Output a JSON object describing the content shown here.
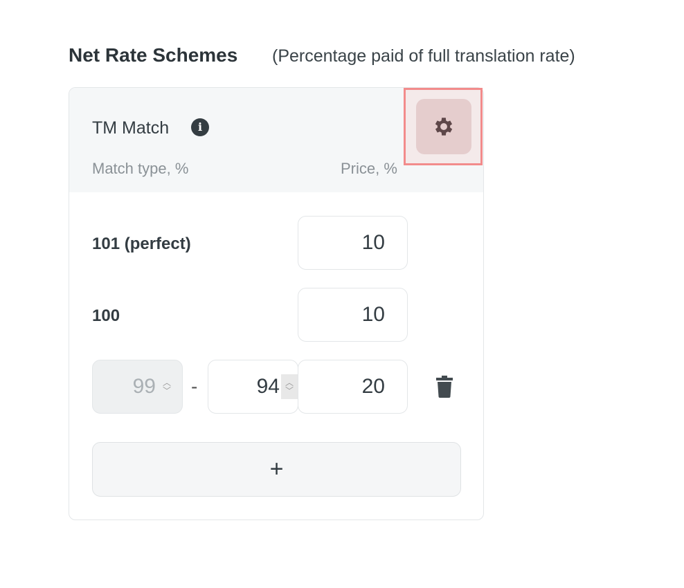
{
  "heading": {
    "title": "Net Rate Schemes",
    "subtitle": "(Percentage paid of full translation rate)"
  },
  "card": {
    "title": "TM Match",
    "info_icon": "info-icon",
    "settings_icon": "gear-icon",
    "columns": {
      "match_type": "Match type, %",
      "price": "Price, %"
    },
    "rows": [
      {
        "label": "101 (perfect)",
        "price": "10"
      },
      {
        "label": "100",
        "price": "10"
      },
      {
        "from": "99",
        "separator": "-",
        "to": "94",
        "price": "20",
        "delete_icon": "trash-icon"
      }
    ],
    "add_label": "+"
  },
  "colors": {
    "highlight": "#f28b8b",
    "header_bg": "#f5f7f8"
  }
}
